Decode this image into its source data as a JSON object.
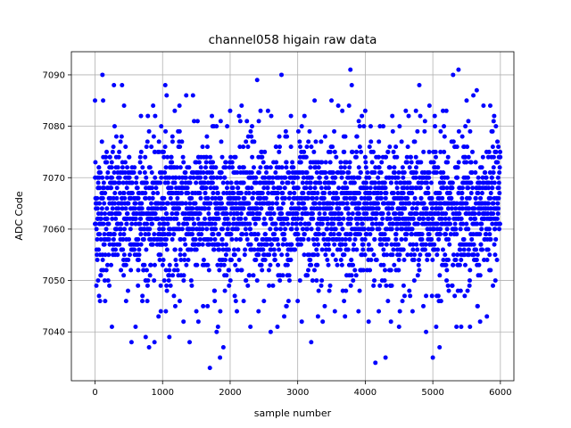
{
  "chart_data": {
    "type": "scatter",
    "title": "channel058 higain raw data",
    "xlabel": "sample number",
    "ylabel": "ADC Code",
    "xlim": [
      -350,
      6200
    ],
    "ylim": [
      7030.5,
      7094.5
    ],
    "xticks": [
      0,
      1000,
      2000,
      3000,
      4000,
      5000,
      6000
    ],
    "yticks": [
      7040,
      7050,
      7060,
      7070,
      7080,
      7090
    ],
    "grid": true,
    "marker_color": "#0000ff",
    "n_samples": 6000,
    "series": [
      {
        "points_note_x": "sample number",
        "x": [
          0,
          45,
          60,
          110,
          120,
          150,
          250,
          280,
          400,
          430,
          460,
          540,
          600,
          680,
          750,
          800,
          860,
          880,
          940,
          980,
          1040,
          1060,
          1100,
          1180,
          1250,
          1310,
          1350,
          1400,
          1450,
          1500,
          1530,
          1600,
          1700,
          1730,
          1760,
          1800,
          1820,
          1850,
          1860,
          1900,
          2000,
          2100,
          2150,
          2170,
          2200,
          2300,
          2400,
          2420,
          2450,
          2500,
          2560,
          2600,
          2700,
          2760,
          2800,
          2900,
          3000,
          3060,
          3100,
          3200,
          3250,
          3300,
          3370,
          3400,
          3500,
          3550,
          3600,
          3660,
          3700,
          3760,
          3780,
          3800,
          3900,
          3950,
          4000,
          4050,
          4080,
          4150,
          4200,
          4300,
          4380,
          4400,
          4500,
          4550,
          4600,
          4700,
          4750,
          4800,
          4860,
          4900,
          4950,
          5000,
          5050,
          5100,
          5150,
          5200,
          5300,
          5350,
          5380,
          5420,
          5500,
          5550,
          5600,
          5650,
          5700,
          5750,
          5800,
          5850,
          5900
        ],
        "y": [
          7085,
          7050,
          7047,
          7090,
          7085,
          7046,
          7041,
          7088,
          7088,
          7084,
          7046,
          7038,
          7041,
          7082,
          7039,
          7037,
          7084,
          7038,
          7043,
          7080,
          7088,
          7086,
          7039,
          7083,
          7084,
          7042,
          7086,
          7038,
          7086,
          7044,
          7042,
          7045,
          7033,
          7082,
          7080,
          7040,
          7041,
          7035,
          7081,
          7037,
          7083,
          7044,
          7081,
          7084,
          7046,
          7041,
          7089,
          7044,
          7083,
          7046,
          7083,
          7040,
          7041,
          7090,
          7043,
          7082,
          7046,
          7042,
          7082,
          7038,
          7085,
          7043,
          7042,
          7045,
          7085,
          7044,
          7084,
          7083,
          7043,
          7084,
          7091,
          7088,
          7044,
          7082,
          7083,
          7042,
          7080,
          7034,
          7044,
          7035,
          7042,
          7082,
          7041,
          7046,
          7083,
          7044,
          7083,
          7088,
          7045,
          7040,
          7084,
          7035,
          7041,
          7037,
          7083,
          7083,
          7090,
          7041,
          7091,
          7041,
          7085,
          7041,
          7086,
          7087,
          7042,
          7084,
          7043,
          7084,
          7081
        ]
      }
    ]
  }
}
